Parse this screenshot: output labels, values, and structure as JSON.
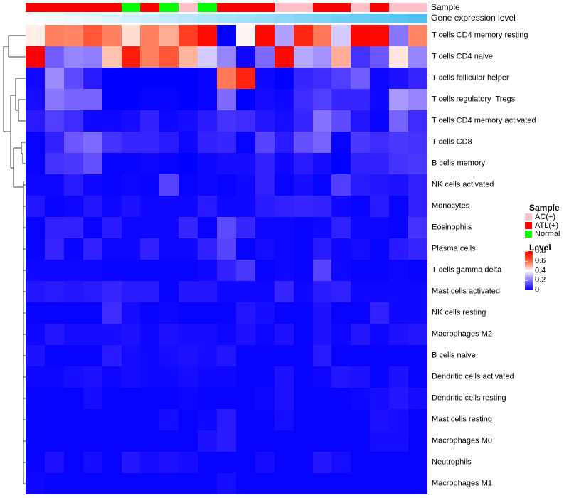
{
  "chart_data": {
    "type": "heatmap",
    "description": "Immune cell fraction heatmap with clustered rows, sample-type and gene-expression-level column annotations",
    "col_annotations": {
      "sample": {
        "label": "Sample",
        "groups": [
          "ATL(+)",
          "ATL(+)",
          "ATL(+)",
          "ATL(+)",
          "ATL(+)",
          "Normal",
          "ATL(+)",
          "Normal",
          "AC(+)",
          "Normal",
          "ATL(+)",
          "ATL(+)",
          "ATL(+)",
          "AC(+)",
          "AC(+)",
          "ATL(+)",
          "ATL(+)",
          "AC(+)",
          "ATL(+)",
          "AC(+)",
          "AC(+)"
        ],
        "colors": {
          "AC(+)": "#FFC0CB",
          "ATL(+)": "#FF0000",
          "Normal": "#00FF00"
        }
      },
      "gene_expression": {
        "label": "Gene expression level",
        "values": [
          0,
          0.05,
          0.1,
          0.15,
          0.2,
          0.25,
          0.3,
          0.35,
          0.4,
          0.45,
          0.5,
          0.55,
          0.6,
          0.65,
          0.7,
          0.75,
          0.8,
          0.85,
          0.9,
          0.95,
          1
        ],
        "color_low": "#FFFFFF",
        "color_high": "#4FC3F1"
      }
    },
    "rows": [
      "T cells CD4 memory resting",
      "T cells CD4 naive",
      "T cells follicular helper",
      "T cells regulatory  Tregs",
      "T cells CD4 memory activated",
      "T cells CD8",
      "B cells memory",
      "NK cells activated",
      "Monocytes",
      "Eosinophils",
      "Plasma cells",
      "T cells gamma delta",
      "Mast cells activated",
      "NK cells resting",
      "Macrophages M2",
      "B cells naive",
      "Dendritic cells activated",
      "Dendritic cells resting",
      "Mast cells resting",
      "Macrophages M0",
      "Neutrophils",
      "Macrophages M1"
    ],
    "values": [
      [
        0.42,
        0.56,
        0.55,
        0.62,
        0.56,
        0.44,
        0.56,
        0.5,
        0.66,
        0.76,
        0.0,
        0.41,
        0.77,
        0.27,
        0.7,
        0.57,
        0.33,
        0.78,
        0.77,
        0.21,
        0.55
      ],
      [
        0.8,
        0.17,
        0.23,
        0.22,
        0.47,
        0.72,
        0.56,
        0.62,
        0.49,
        0.33,
        0.23,
        0.02,
        0.19,
        0.77,
        0.28,
        0.25,
        0.5,
        0.1,
        0.16,
        0.43,
        0.23
      ],
      [
        0.02,
        0.24,
        0.14,
        0.06,
        0.0,
        0.0,
        0.0,
        0.0,
        0.0,
        0.01,
        0.57,
        0.71,
        0.02,
        0.0,
        0.08,
        0.09,
        0.12,
        0.17,
        0.02,
        0.04,
        0.08
      ],
      [
        0.03,
        0.21,
        0.18,
        0.18,
        0.0,
        0.0,
        0.01,
        0.01,
        0.0,
        0.01,
        0.19,
        0.0,
        0.03,
        0.02,
        0.09,
        0.12,
        0.08,
        0.08,
        0.02,
        0.26,
        0.23
      ],
      [
        0.06,
        0.12,
        0.09,
        0.02,
        0.02,
        0.03,
        0.07,
        0.02,
        0.03,
        0.06,
        0.1,
        0.09,
        0.05,
        0.03,
        0.08,
        0.2,
        0.14,
        0.05,
        0.01,
        0.18,
        0.09
      ],
      [
        0.01,
        0.07,
        0.16,
        0.19,
        0.1,
        0.08,
        0.08,
        0.06,
        0.02,
        0.07,
        0.08,
        0.01,
        0.13,
        0.06,
        0.15,
        0.18,
        0.01,
        0.11,
        0.09,
        0.11,
        0.1
      ],
      [
        0.01,
        0.1,
        0.11,
        0.15,
        0.01,
        0.01,
        0.02,
        0.01,
        0.0,
        0.02,
        0.03,
        0.03,
        0.07,
        0.02,
        0.06,
        0.03,
        0.0,
        0.07,
        0.07,
        0.1,
        0.11
      ],
      [
        0.02,
        0.02,
        0.06,
        0.02,
        0.01,
        0.02,
        0.01,
        0.13,
        0.01,
        0.02,
        0.01,
        0.02,
        0.07,
        0.01,
        0.03,
        0.01,
        0.12,
        0.06,
        0.05,
        0.04,
        0.07
      ],
      [
        0.05,
        0.01,
        0.02,
        0.05,
        0.02,
        0.04,
        0.02,
        0.02,
        0.02,
        0.06,
        0.02,
        0.02,
        0.06,
        0.07,
        0.08,
        0.07,
        0.02,
        0.01,
        0.06,
        0.01,
        0.07
      ],
      [
        0.01,
        0.07,
        0.07,
        0.01,
        0.06,
        0.02,
        0.02,
        0.02,
        0.08,
        0.01,
        0.14,
        0.08,
        0.02,
        0.02,
        0.01,
        0.02,
        0.07,
        0.02,
        0.02,
        0.01,
        0.1
      ],
      [
        0.01,
        0.08,
        0.01,
        0.07,
        0.02,
        0.02,
        0.07,
        0.02,
        0.02,
        0.07,
        0.13,
        0.01,
        0.03,
        0.02,
        0.01,
        0.06,
        0.02,
        0.03,
        0.01,
        0.06,
        0.08
      ],
      [
        0.02,
        0.02,
        0.02,
        0.02,
        0.01,
        0.01,
        0.01,
        0.01,
        0.01,
        0.02,
        0.07,
        0.11,
        0.01,
        0.02,
        0.01,
        0.13,
        0.02,
        0.01,
        0.01,
        0.02,
        0.01
      ],
      [
        0.05,
        0.06,
        0.05,
        0.06,
        0.08,
        0.06,
        0.06,
        0.01,
        0.05,
        0.05,
        0.02,
        0.02,
        0.02,
        0.08,
        0.02,
        0.06,
        0.07,
        0.02,
        0.02,
        0.02,
        0.02
      ],
      [
        0.01,
        0.01,
        0.01,
        0.01,
        0.09,
        0.03,
        0.01,
        0.02,
        0.01,
        0.01,
        0.01,
        0.05,
        0.03,
        0.01,
        0.01,
        0.04,
        0.01,
        0.01,
        0.07,
        0.02,
        0.02
      ],
      [
        0.02,
        0.05,
        0.03,
        0.03,
        0.03,
        0.04,
        0.02,
        0.04,
        0.03,
        0.03,
        0.02,
        0.04,
        0.02,
        0.04,
        0.01,
        0.04,
        0.02,
        0.05,
        0.02,
        0.04,
        0.05
      ],
      [
        0.04,
        0.01,
        0.01,
        0.01,
        0.06,
        0.03,
        0.02,
        0.03,
        0.04,
        0.03,
        0.05,
        0.01,
        0.01,
        0.01,
        0.01,
        0.06,
        0.01,
        0.01,
        0.01,
        0.01,
        0.01
      ],
      [
        0.02,
        0.02,
        0.03,
        0.04,
        0.02,
        0.03,
        0.02,
        0.02,
        0.03,
        0.02,
        0.02,
        0.01,
        0.01,
        0.04,
        0.01,
        0.02,
        0.05,
        0.04,
        0.01,
        0.04,
        0.01
      ],
      [
        0.01,
        0.01,
        0.01,
        0.03,
        0.01,
        0.01,
        0.01,
        0.01,
        0.02,
        0.01,
        0.01,
        0.01,
        0.02,
        0.04,
        0.01,
        0.01,
        0.01,
        0.02,
        0.03,
        0.05,
        0.03
      ],
      [
        0.01,
        0.01,
        0.01,
        0.01,
        0.01,
        0.01,
        0.01,
        0.03,
        0.01,
        0.02,
        0.06,
        0.01,
        0.01,
        0.03,
        0.01,
        0.01,
        0.01,
        0.01,
        0.04,
        0.03,
        0.01
      ],
      [
        0.01,
        0.01,
        0.01,
        0.01,
        0.01,
        0.01,
        0.01,
        0.01,
        0.01,
        0.04,
        0.06,
        0.01,
        0.01,
        0.01,
        0.01,
        0.01,
        0.01,
        0.01,
        0.03,
        0.03,
        0.01
      ],
      [
        0.01,
        0.04,
        0.01,
        0.03,
        0.01,
        0.05,
        0.03,
        0.04,
        0.03,
        0.01,
        0.01,
        0.01,
        0.03,
        0.01,
        0.01,
        0.05,
        0.03,
        0.01,
        0.01,
        0.01,
        0.01
      ],
      [
        0.02,
        0.01,
        0.01,
        0.01,
        0.01,
        0.01,
        0.01,
        0.01,
        0.01,
        0.01,
        0.03,
        0.01,
        0.01,
        0.01,
        0.01,
        0.01,
        0.01,
        0.01,
        0.01,
        0.01,
        0.01
      ]
    ],
    "scale": {
      "min": 0,
      "max": 0.8,
      "midpoint": 0.4,
      "color_low": "#0000FF",
      "color_mid": "#FFFFFF",
      "color_high": "#FF0000"
    },
    "legend": {
      "sample": {
        "title": "Sample",
        "entries": [
          {
            "label": "AC(+)",
            "color": "#FFC0CB"
          },
          {
            "label": "ATL(+)",
            "color": "#FF0000"
          },
          {
            "label": "Normal",
            "color": "#00FF00"
          }
        ]
      },
      "level": {
        "title": "Level",
        "ticks": [
          "0.8",
          "0.6",
          "0.4",
          "0.2",
          "0"
        ]
      }
    },
    "row_dendrogram_segments": [
      [
        12,
        50,
        36,
        50
      ],
      [
        12,
        80,
        36,
        80
      ],
      [
        12,
        50,
        12,
        80
      ],
      [
        5,
        65,
        12,
        65
      ],
      [
        5,
        65,
        5,
        185
      ],
      [
        5,
        185,
        15,
        185
      ],
      [
        15,
        134,
        15,
        236
      ],
      [
        15,
        134,
        22,
        134
      ],
      [
        22,
        110,
        22,
        155
      ],
      [
        22,
        110,
        36,
        110
      ],
      [
        22,
        155,
        26,
        155
      ],
      [
        26,
        140,
        26,
        170
      ],
      [
        26,
        140,
        36,
        140
      ],
      [
        26,
        170,
        36,
        170
      ],
      [
        15,
        236,
        19,
        236
      ],
      [
        19,
        208,
        19,
        263
      ],
      [
        19,
        208,
        30,
        208
      ],
      [
        30,
        200,
        30,
        216
      ],
      [
        30,
        200,
        36,
        200
      ],
      [
        30,
        216,
        32,
        216
      ],
      [
        32,
        216,
        32,
        230
      ],
      [
        32,
        230,
        36,
        230
      ],
      [
        19,
        263,
        33,
        263
      ],
      [
        33,
        255,
        33,
        680
      ],
      [
        33,
        260,
        36,
        260
      ],
      [
        33,
        290,
        36,
        290
      ],
      [
        33,
        320,
        36,
        320
      ],
      [
        33,
        350,
        36,
        350
      ],
      [
        33,
        380,
        36,
        380
      ],
      [
        33,
        410,
        36,
        410
      ],
      [
        33,
        440,
        36,
        440
      ],
      [
        33,
        470,
        36,
        470
      ],
      [
        33,
        500,
        36,
        500
      ],
      [
        33,
        530,
        36,
        530
      ],
      [
        33,
        560,
        36,
        560
      ],
      [
        33,
        590,
        36,
        590
      ],
      [
        33,
        620,
        36,
        620
      ],
      [
        33,
        650,
        36,
        650
      ],
      [
        33,
        680,
        36,
        680
      ]
    ]
  }
}
